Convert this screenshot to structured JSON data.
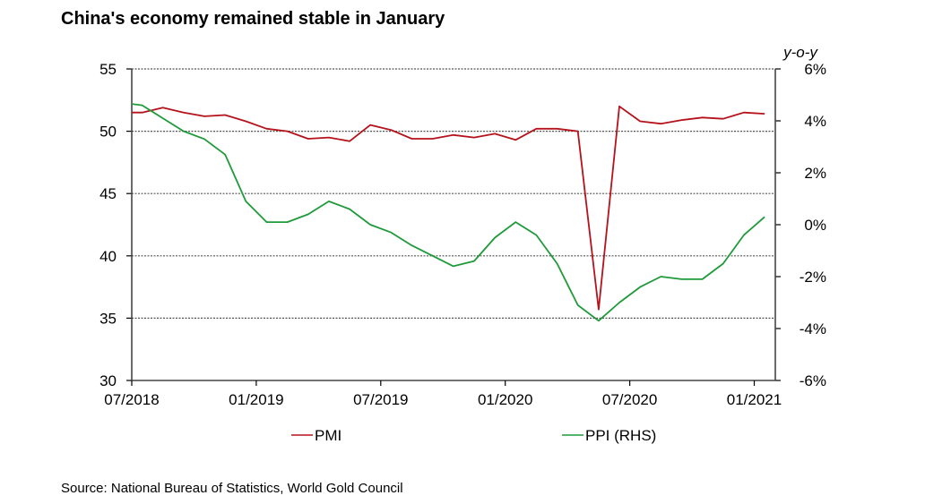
{
  "title": "China's economy remained stable in January",
  "source": "Source: National Bureau of Statistics, World Gold Council",
  "chart_data": {
    "type": "line",
    "title": "China's economy remained stable in January",
    "xlabel": "",
    "ylabel": "",
    "y2label": "y-o-y",
    "x": [
      "06/2018",
      "07/2018",
      "08/2018",
      "09/2018",
      "10/2018",
      "11/2018",
      "12/2018",
      "01/2019",
      "02/2019",
      "03/2019",
      "04/2019",
      "05/2019",
      "06/2019",
      "07/2019",
      "08/2019",
      "09/2019",
      "10/2019",
      "11/2019",
      "12/2019",
      "01/2020",
      "02/2020",
      "03/2020",
      "04/2020",
      "05/2020",
      "06/2020",
      "07/2020",
      "08/2020",
      "09/2020",
      "10/2020",
      "11/2020",
      "12/2020",
      "01/2021"
    ],
    "x_ticks": [
      "07/2018",
      "01/2019",
      "07/2019",
      "01/2020",
      "07/2020",
      "01/2021"
    ],
    "ylim": [
      30,
      55
    ],
    "y_ticks": [
      30,
      35,
      40,
      45,
      50,
      55
    ],
    "y2lim": [
      -6,
      6
    ],
    "y2_ticks": [
      "-6%",
      "-4%",
      "-2%",
      "0%",
      "2%",
      "4%",
      "6%"
    ],
    "y2_tick_values": [
      -6,
      -4,
      -2,
      0,
      2,
      4,
      6
    ],
    "grid": "horizontal dotted at left-axis ticks",
    "legend": "bottom",
    "series": [
      {
        "name": "PMI",
        "axis": "left",
        "color": "#b5121b",
        "values": [
          51.5,
          51.5,
          51.9,
          51.5,
          51.2,
          51.3,
          50.8,
          50.2,
          50.0,
          49.4,
          49.5,
          49.2,
          50.5,
          50.1,
          49.4,
          49.4,
          49.7,
          49.5,
          49.8,
          49.3,
          50.2,
          50.2,
          50.0,
          35.7,
          52.0,
          50.8,
          50.6,
          50.9,
          51.1,
          51.0,
          51.5,
          51.4
        ]
      },
      {
        "name": "PPI (RHS)",
        "axis": "right",
        "color": "#1f9a3a",
        "values": [
          4.7,
          4.6,
          4.1,
          3.6,
          3.3,
          2.7,
          0.9,
          0.1,
          0.1,
          0.4,
          0.9,
          0.6,
          0.0,
          -0.3,
          -0.8,
          -1.2,
          -1.6,
          -1.4,
          -0.5,
          0.1,
          -0.4,
          -1.5,
          -3.1,
          -3.7,
          -3.0,
          -2.4,
          -2.0,
          -2.1,
          -2.1,
          -1.5,
          -0.4,
          0.3
        ]
      }
    ]
  }
}
